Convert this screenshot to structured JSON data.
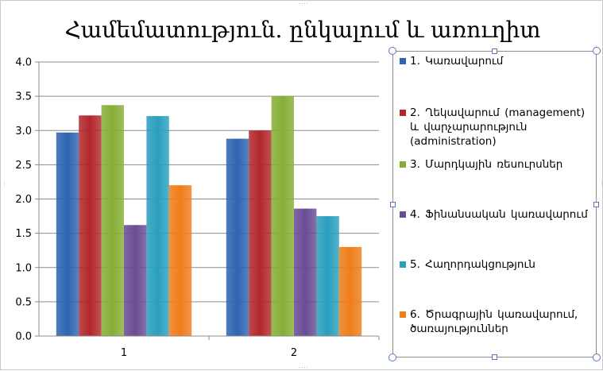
{
  "chart_data": {
    "type": "bar",
    "title": "Համեմատություն. ընկալում և առուղիտ",
    "categories": [
      "1",
      "2"
    ],
    "ylim": [
      0,
      4
    ],
    "yticks": [
      "0.0",
      "0.5",
      "1.0",
      "1.5",
      "2.0",
      "2.5",
      "3.0",
      "3.5",
      "4.0"
    ],
    "grid": true,
    "legend_position": "right",
    "series": [
      {
        "name": "1. Կառավարում",
        "color": "#2f64b2",
        "values": [
          2.97,
          2.88
        ]
      },
      {
        "name": "2. Ղեկավարում (management) և վարչարարություն (administration)",
        "color": "#b1282b",
        "values": [
          3.22,
          3.0
        ]
      },
      {
        "name": "3. Մարդկային ռեսուրսներ",
        "color": "#86ae36",
        "values": [
          3.37,
          3.5
        ]
      },
      {
        "name": "4. Ֆինանսական կառավարում",
        "color": "#6a4c94",
        "values": [
          1.62,
          1.86
        ]
      },
      {
        "name": "5. Հաղորդակցություն",
        "color": "#2a9fbd",
        "values": [
          3.21,
          1.75
        ]
      },
      {
        "name": "6. Ծրագրային կառավարում, ծառայություններ",
        "color": "#ef7d1a",
        "values": [
          2.2,
          1.3
        ]
      }
    ]
  }
}
